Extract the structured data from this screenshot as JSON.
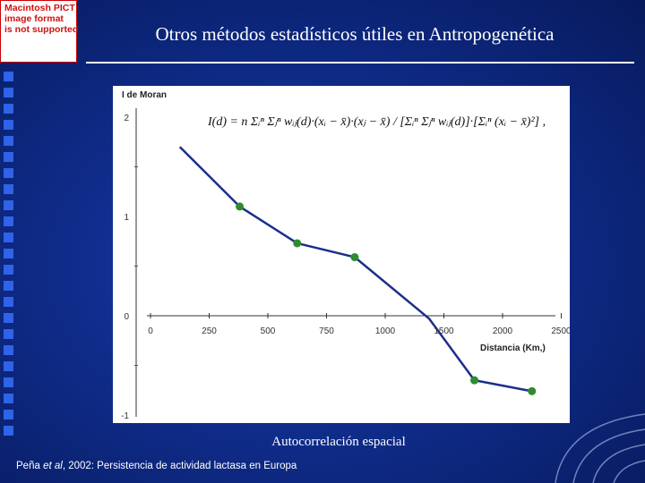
{
  "placeholder": {
    "lines": [
      "Macintosh PICT",
      "image format",
      "is not supported"
    ]
  },
  "slide": {
    "title": "Otros métodos estadísticos útiles en Antropogenética",
    "caption": "Autocorrelación espacial",
    "citation_before": "Peña ",
    "citation_italic": "et al",
    "citation_after": ", 2002: Persistencia de actividad lactasa en Europa"
  },
  "colors": {
    "background": "#0f2c8a",
    "line": "#1a2f8c",
    "point": "#2e8b2e",
    "bullets": "#2f63e8"
  },
  "chart_data": {
    "type": "line",
    "ylabel": "I de Moran",
    "xlabel": "Distancia (Km,)",
    "x_ticks": [
      0,
      250,
      500,
      750,
      1000,
      1500,
      2000,
      2500
    ],
    "x_tick_labels": [
      "0",
      "250",
      "500",
      "750",
      "1000",
      "1500",
      "2000",
      "2500"
    ],
    "y_ticks": [
      2,
      1,
      0,
      -1
    ],
    "y_tick_labels": [
      "2",
      "1",
      "0",
      "-1"
    ],
    "ylim": [
      -1,
      2
    ],
    "grid": false,
    "formula": "I(d) = n Σᵢⁿ Σⱼⁿ wᵢⱼ(d)·(xᵢ − x̄)·(xⱼ − x̄) / [Σᵢⁿ Σⱼⁿ wᵢⱼ(d)]·[Σᵢⁿ (xᵢ − x̄)²] ,",
    "series": [
      {
        "x": [
          125,
          380,
          625,
          870,
          1375,
          1760,
          2250
        ],
        "y": [
          1.7,
          1.1,
          0.73,
          0.59,
          -0.03,
          -0.65,
          -0.76
        ],
        "markers": [
          false,
          true,
          true,
          true,
          false,
          true,
          true
        ]
      }
    ]
  }
}
